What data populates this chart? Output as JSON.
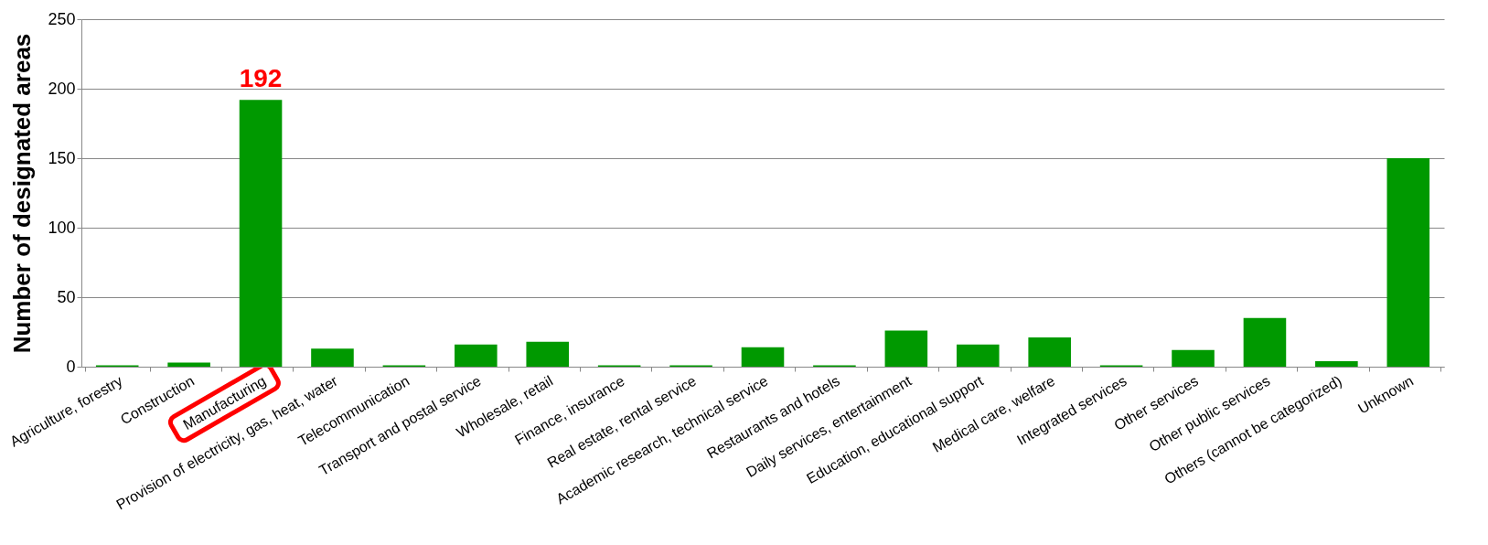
{
  "chart_data": {
    "type": "bar",
    "ylabel": "Number of designated areas",
    "categories": [
      "Agriculture, forestry",
      "Construction",
      "Manufacturing",
      "Provision of electricity, gas, heat, water",
      "Telecommunication",
      "Transport and postal service",
      "Wholesale, retail",
      "Finance, insurance",
      "Real estate, rental service",
      "Academic research, technical service",
      "Restaurants and hotels",
      "Daily services, entertainment",
      "Education, educational support",
      "Medical care, welfare",
      "Integrated services",
      "Other services",
      "Other public services",
      "Others (cannot be categorized)",
      "Unknown"
    ],
    "values": [
      1,
      3,
      192,
      13,
      1,
      16,
      18,
      1,
      1,
      14,
      1,
      26,
      16,
      21,
      1,
      12,
      35,
      4,
      150
    ],
    "value_labels": [
      null,
      null,
      "192",
      null,
      null,
      null,
      null,
      null,
      null,
      null,
      null,
      null,
      null,
      null,
      null,
      null,
      null,
      null,
      null
    ],
    "color": "#009900",
    "ylim": [
      0,
      250
    ],
    "yticks": [
      0,
      50,
      100,
      150,
      200,
      250
    ],
    "grid": "y"
  }
}
